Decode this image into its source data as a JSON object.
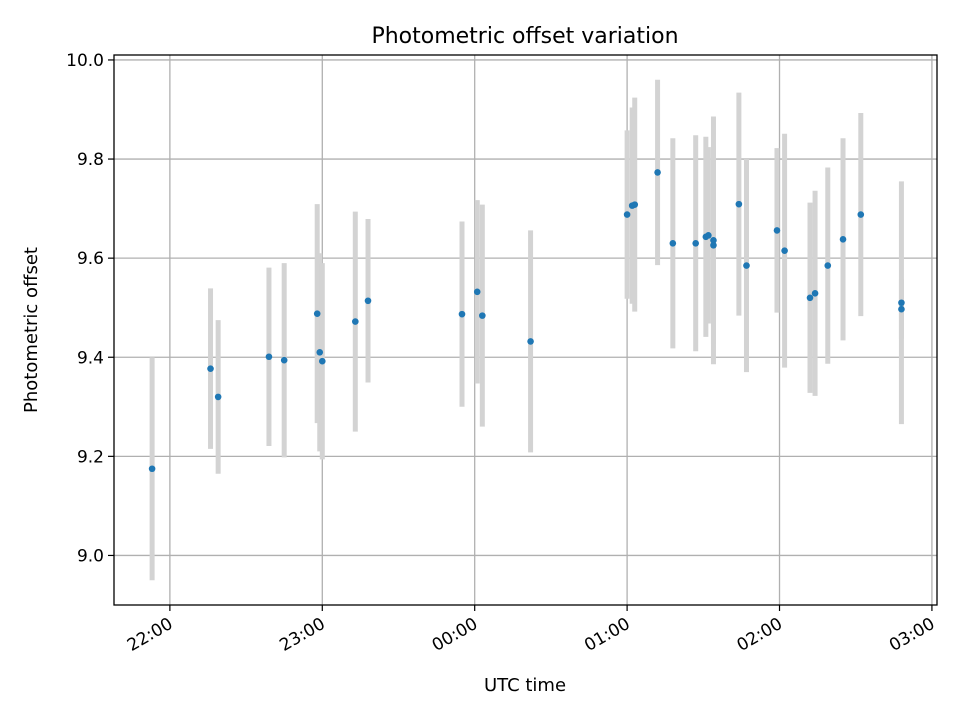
{
  "chart_data": {
    "type": "scatter",
    "title": "Photometric offset variation",
    "xlabel": "UTC time",
    "ylabel": "Photometric offset",
    "x_unit": "UTC",
    "xlim": [
      "21:38",
      "03:02"
    ],
    "ylim": [
      8.9,
      10.01
    ],
    "x_ticks": [
      "22:00",
      "23:00",
      "00:00",
      "01:00",
      "02:00",
      "03:00"
    ],
    "y_ticks": [
      "9.0",
      "9.2",
      "9.4",
      "9.6",
      "9.8",
      "10.0"
    ],
    "grid": true,
    "legend": "none",
    "colors": {
      "point": "#1f77b4",
      "errorbar": "#d3d3d3",
      "grid": "#b0b0b0"
    },
    "points": [
      {
        "x": "21:53",
        "y": 9.175,
        "err": 0.225
      },
      {
        "x": "22:16",
        "y": 9.377,
        "err": 0.162
      },
      {
        "x": "22:19",
        "y": 9.32,
        "err": 0.155
      },
      {
        "x": "22:39",
        "y": 9.401,
        "err": 0.18
      },
      {
        "x": "22:45",
        "y": 9.394,
        "err": 0.196
      },
      {
        "x": "22:58",
        "y": 9.488,
        "err": 0.221
      },
      {
        "x": "22:59",
        "y": 9.41,
        "err": 0.2
      },
      {
        "x": "23:00",
        "y": 9.392,
        "err": 0.198
      },
      {
        "x": "23:13",
        "y": 9.472,
        "err": 0.222
      },
      {
        "x": "23:18",
        "y": 9.514,
        "err": 0.165
      },
      {
        "x": "23:55",
        "y": 9.487,
        "err": 0.187
      },
      {
        "x": "00:01",
        "y": 9.532,
        "err": 0.185
      },
      {
        "x": "00:03",
        "y": 9.484,
        "err": 0.224
      },
      {
        "x": "00:22",
        "y": 9.432,
        "err": 0.224
      },
      {
        "x": "01:00",
        "y": 9.688,
        "err": 0.17
      },
      {
        "x": "01:02",
        "y": 9.706,
        "err": 0.198
      },
      {
        "x": "01:03",
        "y": 9.708,
        "err": 0.216
      },
      {
        "x": "01:12",
        "y": 9.773,
        "err": 0.187
      },
      {
        "x": "01:18",
        "y": 9.63,
        "err": 0.212
      },
      {
        "x": "01:27",
        "y": 9.63,
        "err": 0.218
      },
      {
        "x": "01:31",
        "y": 9.643,
        "err": 0.202
      },
      {
        "x": "01:32",
        "y": 9.646,
        "err": 0.178
      },
      {
        "x": "01:34",
        "y": 9.636,
        "err": 0.25
      },
      {
        "x": "01:34",
        "y": 9.626,
        "err": 0.2
      },
      {
        "x": "01:44",
        "y": 9.709,
        "err": 0.225
      },
      {
        "x": "01:47",
        "y": 9.585,
        "err": 0.215
      },
      {
        "x": "01:59",
        "y": 9.656,
        "err": 0.166
      },
      {
        "x": "02:02",
        "y": 9.615,
        "err": 0.236
      },
      {
        "x": "02:12",
        "y": 9.52,
        "err": 0.192
      },
      {
        "x": "02:14",
        "y": 9.529,
        "err": 0.207
      },
      {
        "x": "02:19",
        "y": 9.585,
        "err": 0.198
      },
      {
        "x": "02:25",
        "y": 9.638,
        "err": 0.204
      },
      {
        "x": "02:32",
        "y": 9.688,
        "err": 0.205
      },
      {
        "x": "02:48",
        "y": 9.51,
        "err": 0.245
      },
      {
        "x": "02:48",
        "y": 9.497,
        "err": 0.06
      }
    ]
  }
}
